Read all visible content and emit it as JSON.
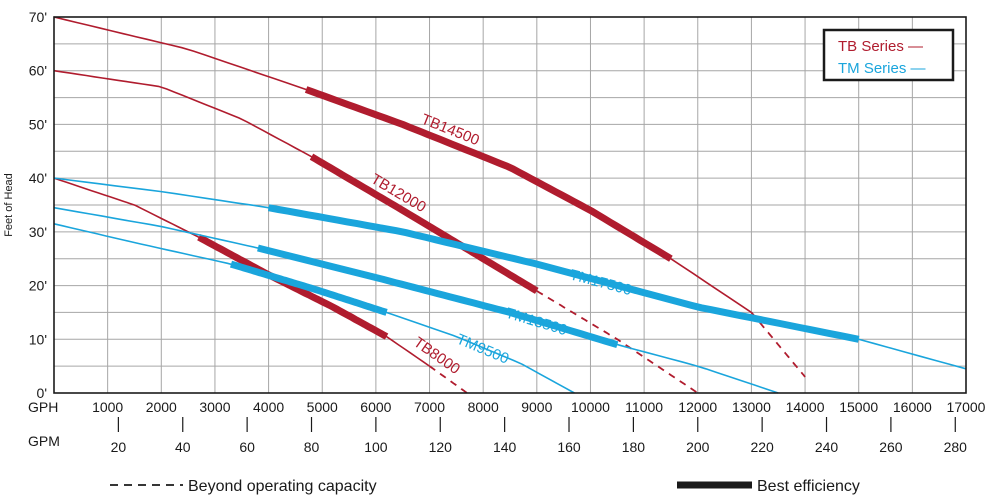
{
  "chart_data": {
    "type": "line",
    "ylabel": "Feet of Head",
    "y_ticks": [
      "0'",
      "10'",
      "20'",
      "30'",
      "40'",
      "50'",
      "60'",
      "70'"
    ],
    "ylim": [
      0,
      70
    ],
    "xlim_gph": [
      0,
      17000
    ],
    "gph_label": "GPH",
    "gph_ticks": [
      "1000",
      "2000",
      "3000",
      "4000",
      "5000",
      "6000",
      "7000",
      "8000",
      "9000",
      "10000",
      "11000",
      "12000",
      "13000",
      "14000",
      "15000",
      "16000",
      "17000"
    ],
    "gpm_label": "GPM",
    "gpm_ticks": [
      "20",
      "40",
      "60",
      "80",
      "100",
      "120",
      "140",
      "160",
      "180",
      "200",
      "220",
      "240",
      "260",
      "280"
    ],
    "grid": true,
    "colors": {
      "tb": "#b01c2e",
      "tm": "#1aa5dc",
      "grid": "#a6a6a6"
    },
    "legend": {
      "position": "top-right",
      "items": [
        {
          "label": "TB Series —",
          "color": "#b01c2e"
        },
        {
          "label": "TM Series —",
          "color": "#1aa5dc"
        }
      ]
    },
    "series": [
      {
        "name": "TB14500",
        "color": "#b01c2e",
        "x": [
          0,
          2500,
          4700,
          6500,
          8500,
          10000,
          11500,
          13000,
          14000
        ],
        "y": [
          70,
          64,
          56.5,
          50,
          42,
          34,
          25,
          15,
          3
        ],
        "best_efficiency": [
          4700,
          11500
        ],
        "beyond_capacity_from": 13000
      },
      {
        "name": "TB12000",
        "color": "#b01c2e",
        "x": [
          0,
          2000,
          3500,
          4800,
          6500,
          8000,
          9000,
          10500,
          12000
        ],
        "y": [
          60,
          57,
          51,
          44,
          34,
          25,
          19,
          10,
          0
        ],
        "best_efficiency": [
          4800,
          9000
        ],
        "beyond_capacity_from": 9000
      },
      {
        "name": "TB8000",
        "color": "#b01c2e",
        "x": [
          0,
          1500,
          2700,
          4000,
          5200,
          6200,
          7000,
          7700
        ],
        "y": [
          40,
          35,
          29,
          22,
          16,
          10.5,
          5,
          0
        ],
        "best_efficiency": [
          2700,
          6200
        ],
        "beyond_capacity_from": 7000
      },
      {
        "name": "TM17500",
        "color": "#1aa5dc",
        "x": [
          0,
          2000,
          4000,
          6500,
          9000,
          12000,
          15000,
          17000
        ],
        "y": [
          40,
          37.5,
          34.5,
          30,
          24,
          16,
          10,
          4.5
        ],
        "best_efficiency": [
          4000,
          15000
        ]
      },
      {
        "name": "TM13500",
        "color": "#1aa5dc",
        "x": [
          0,
          2000,
          3800,
          6000,
          8500,
          10500,
          12000,
          13500
        ],
        "y": [
          34.5,
          31,
          27,
          21.5,
          15,
          9,
          5,
          0
        ],
        "best_efficiency": [
          3800,
          10500
        ]
      },
      {
        "name": "TM9500",
        "color": "#1aa5dc",
        "x": [
          0,
          1500,
          3300,
          4800,
          6200,
          7500,
          8700,
          9700
        ],
        "y": [
          31.5,
          28,
          24,
          19.5,
          15,
          10.5,
          5.5,
          0
        ],
        "best_efficiency": [
          3300,
          6200
        ]
      }
    ],
    "footer": {
      "dashed_label": "Beyond operating capacity",
      "thick_label": "Best efficiency"
    }
  }
}
